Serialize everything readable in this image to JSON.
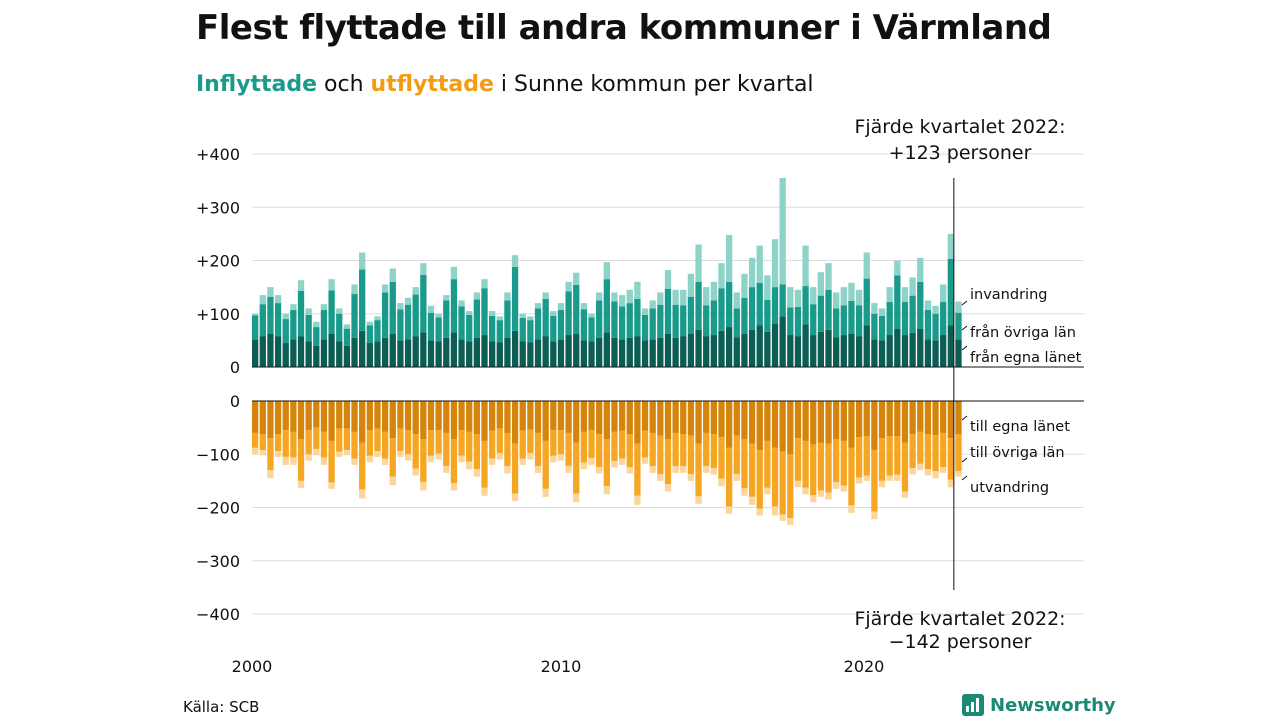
{
  "header": {
    "title": "Flest flyttade till andra kommuner i Värmland",
    "subtitle_inflow": "Inflyttade",
    "subtitle_mid": " och ",
    "subtitle_outflow": "utflyttade",
    "subtitle_rest": " i Sunne kommun per kvartal"
  },
  "footer": {
    "source": "Källa: SCB",
    "brand": "Newsworthy"
  },
  "colors": {
    "in_egna": "#0c5e55",
    "in_ovriga": "#1a9a8a",
    "in_invandring": "#8dd3c7",
    "ut_egna": "#d6850c",
    "ut_ovriga": "#f5a623",
    "ut_utvandring": "#fbd59a"
  },
  "chart_data": {
    "type": "bar",
    "stacked": true,
    "x_start": "2000 Q1",
    "x_tick_labels": [
      "2000",
      "2010",
      "2020"
    ],
    "y_ticks_top": [
      "+400",
      "+300",
      "+200",
      "+100",
      "0"
    ],
    "y_ticks_bottom": [
      "0",
      "−100",
      "−200",
      "−300",
      "−400"
    ],
    "ylim_inflow": [
      0,
      400
    ],
    "ylim_outflow": [
      -400,
      0
    ],
    "grid": true,
    "annotation_top_line1": "Fjärde kvartalet 2022:",
    "annotation_top_line2": "+123 personer",
    "annotation_bottom_line1": "Fjärde kvartalet 2022:",
    "annotation_bottom_line2": "−142 personer",
    "series_labels": {
      "invandring": "invandring",
      "fran_ovriga": "från övriga län",
      "fran_egna": "från egna länet",
      "till_egna": "till egna länet",
      "till_ovriga": "till övriga län",
      "utvandring": "utvandring"
    },
    "inflow_totals": [
      100,
      135,
      150,
      135,
      100,
      118,
      163,
      110,
      85,
      118,
      165,
      110,
      80,
      155,
      215,
      85,
      95,
      155,
      185,
      120,
      130,
      150,
      195,
      115,
      100,
      135,
      188,
      125,
      105,
      140,
      165,
      105,
      95,
      140,
      210,
      100,
      95,
      120,
      140,
      105,
      120,
      160,
      177,
      120,
      100,
      140,
      197,
      140,
      135,
      145,
      160,
      110,
      125,
      140,
      182,
      145,
      145,
      175,
      230,
      150,
      160,
      195,
      248,
      140,
      175,
      205,
      228,
      172,
      240,
      355,
      150,
      145,
      228,
      150,
      178,
      195,
      140,
      150,
      158,
      145,
      215,
      120,
      110,
      150,
      200,
      150,
      168,
      205,
      125,
      115,
      155,
      250,
      123
    ],
    "inflow_egna": [
      52,
      58,
      62,
      58,
      45,
      52,
      58,
      48,
      40,
      52,
      62,
      48,
      40,
      55,
      68,
      45,
      48,
      55,
      62,
      50,
      52,
      58,
      65,
      50,
      48,
      55,
      65,
      52,
      48,
      55,
      60,
      48,
      46,
      55,
      68,
      48,
      46,
      52,
      58,
      48,
      52,
      60,
      62,
      50,
      48,
      55,
      65,
      55,
      52,
      55,
      58,
      50,
      52,
      55,
      62,
      55,
      58,
      62,
      70,
      58,
      60,
      68,
      75,
      56,
      62,
      70,
      78,
      66,
      82,
      95,
      60,
      58,
      80,
      60,
      66,
      70,
      56,
      60,
      62,
      58,
      78,
      52,
      50,
      60,
      72,
      60,
      64,
      72,
      52,
      50,
      60,
      78,
      52
    ],
    "inflow_ovriga": [
      45,
      60,
      70,
      62,
      45,
      55,
      85,
      50,
      35,
      55,
      82,
      52,
      32,
      82,
      115,
      33,
      40,
      85,
      98,
      58,
      65,
      78,
      108,
      52,
      45,
      70,
      100,
      62,
      50,
      72,
      88,
      48,
      42,
      70,
      120,
      44,
      42,
      58,
      70,
      48,
      55,
      82,
      92,
      58,
      45,
      70,
      100,
      68,
      62,
      65,
      70,
      48,
      58,
      62,
      85,
      62,
      58,
      70,
      90,
      58,
      65,
      80,
      85,
      54,
      68,
      80,
      80,
      60,
      68,
      60,
      52,
      55,
      72,
      58,
      68,
      75,
      54,
      56,
      62,
      58,
      88,
      48,
      46,
      62,
      100,
      62,
      70,
      88,
      55,
      50,
      62,
      125,
      50
    ],
    "outflow_totals": [
      100,
      102,
      145,
      105,
      120,
      120,
      163,
      112,
      102,
      120,
      165,
      105,
      102,
      120,
      183,
      115,
      105,
      120,
      158,
      105,
      112,
      140,
      168,
      115,
      110,
      135,
      168,
      115,
      128,
      142,
      178,
      120,
      110,
      136,
      188,
      120,
      110,
      135,
      180,
      115,
      112,
      135,
      190,
      128,
      120,
      136,
      175,
      125,
      120,
      136,
      195,
      118,
      135,
      150,
      170,
      135,
      135,
      150,
      193,
      135,
      138,
      160,
      212,
      150,
      178,
      195,
      215,
      175,
      215,
      225,
      233,
      162,
      175,
      190,
      180,
      185,
      165,
      170,
      210,
      155,
      150,
      222,
      162,
      150,
      150,
      182,
      138,
      130,
      140,
      145,
      135,
      162,
      142
    ],
    "outflow_egna": [
      60,
      62,
      70,
      62,
      55,
      58,
      72,
      55,
      50,
      58,
      75,
      52,
      52,
      58,
      78,
      55,
      52,
      58,
      70,
      52,
      55,
      62,
      72,
      55,
      55,
      60,
      72,
      55,
      58,
      62,
      75,
      56,
      52,
      60,
      80,
      56,
      54,
      60,
      75,
      55,
      55,
      60,
      78,
      58,
      55,
      62,
      72,
      58,
      56,
      62,
      80,
      56,
      60,
      65,
      72,
      60,
      62,
      65,
      80,
      60,
      62,
      68,
      88,
      65,
      72,
      80,
      92,
      75,
      88,
      95,
      100,
      70,
      75,
      82,
      78,
      80,
      72,
      75,
      88,
      68,
      66,
      92,
      70,
      66,
      66,
      78,
      62,
      58,
      62,
      64,
      60,
      70,
      62
    ],
    "outflow_ovriga": [
      28,
      30,
      60,
      32,
      50,
      48,
      78,
      45,
      40,
      48,
      78,
      43,
      40,
      50,
      88,
      48,
      42,
      50,
      72,
      42,
      45,
      65,
      80,
      48,
      44,
      62,
      82,
      48,
      56,
      66,
      88,
      52,
      46,
      62,
      94,
      52,
      44,
      62,
      90,
      48,
      45,
      62,
      96,
      58,
      52,
      62,
      88,
      55,
      52,
      62,
      98,
      50,
      62,
      72,
      84,
      62,
      60,
      72,
      99,
      62,
      64,
      78,
      110,
      72,
      92,
      100,
      110,
      88,
      110,
      118,
      120,
      80,
      88,
      95,
      90,
      92,
      80,
      84,
      108,
      76,
      74,
      116,
      80,
      74,
      72,
      92,
      64,
      60,
      66,
      68,
      64,
      78,
      70
    ]
  }
}
